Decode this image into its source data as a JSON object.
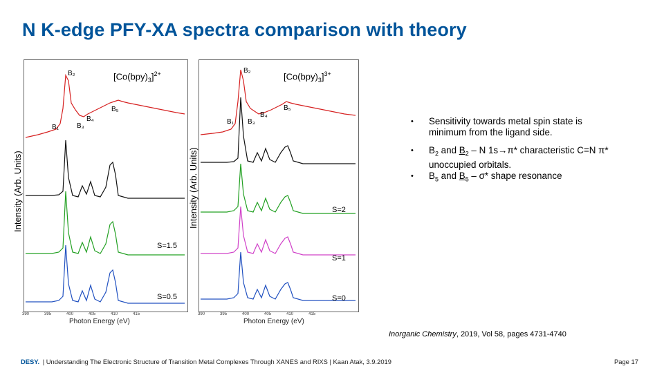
{
  "title": "N K-edge PFY-XA spectra comparison with theory",
  "left_panel": {
    "compound_prefix": "[Co(bpy)",
    "compound_sub": "3",
    "compound_close": "]",
    "compound_sup": "2+",
    "ylabel": "Intensity (Arb. Units)",
    "xlabel": "Photon Energy (eV)",
    "xticks": [
      "390",
      "395",
      "400",
      "405",
      "410",
      "415"
    ],
    "peak_labels": [
      "B₂",
      "B₁",
      "B₃",
      "B₄",
      "B₅"
    ],
    "spin_labels": [
      "S=1.5",
      "S=0.5"
    ]
  },
  "right_panel": {
    "compound_prefix": "[Co(bpy)",
    "compound_sub": "3",
    "compound_close": "]",
    "compound_sup": "3+",
    "ylabel": "Intensity (Arb. Units)",
    "xlabel": "Photon Energy (eV)",
    "xticks": [
      "390",
      "395",
      "400",
      "405",
      "410",
      "415"
    ],
    "peak_labels": [
      "B₂",
      "B₁",
      "B₃",
      "B₄",
      "B₅"
    ],
    "spin_labels": [
      "S=2",
      "S=1",
      "S=0"
    ]
  },
  "bullets": {
    "b1": "Sensitivity towards metal spin state is minimum from the ligand side.",
    "b2_a": "B",
    "b2_sub1": "2",
    "b2_b": " and ",
    "b2_c": "B",
    "b2_sub2": "2",
    "b2_d": " – N 1s→π* characteristic C=N π* unoccupied orbitals.",
    "b3_a": "B",
    "b3_sub1": "5",
    "b3_b": " and ",
    "b3_c": "B",
    "b3_sub2": "5",
    "b3_d": " – σ* shape resonance",
    "marker": "•"
  },
  "citation": {
    "journal": "Inorganic Chemistry",
    "rest": ", 2019, Vol 58, pages 4731-4740"
  },
  "footer": {
    "logo": "DESY.",
    "text": "| Understanding The Electronic Structure of Transition Metal Complexes Through XANES and RIXS | Kaan Atak, 3.9.2019"
  },
  "page_number": "Page 17",
  "colors": {
    "title": "#00549a",
    "experiment": "#d62020",
    "calc_black": "#111111",
    "calc_green": "#22a022",
    "calc_pink": "#d040c8",
    "calc_blue": "#2050c0"
  }
}
